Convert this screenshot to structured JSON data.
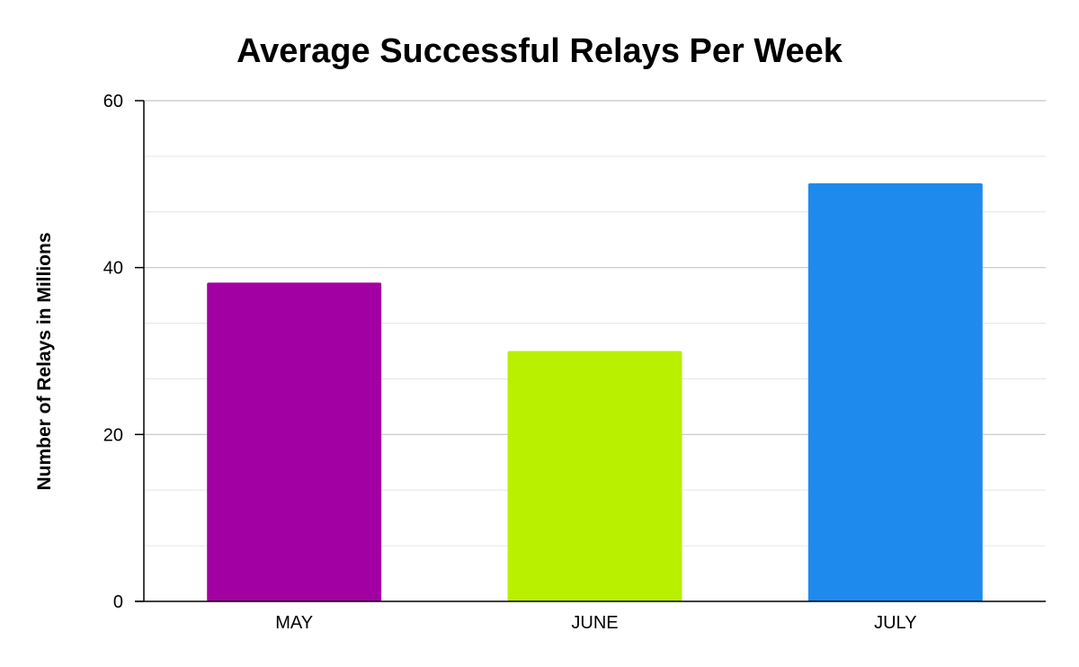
{
  "chart_data": {
    "type": "bar",
    "title": "Average Successful Relays Per Week",
    "xlabel": "",
    "ylabel": "Number of Relays in Millions",
    "categories": [
      "MAY",
      "JUNE",
      "JULY"
    ],
    "values": [
      38.2,
      30.0,
      50.1
    ],
    "colors": [
      "#a300a3",
      "#b8f000",
      "#1f8aed"
    ],
    "ylim": [
      0,
      60
    ],
    "yticks": [
      0,
      20,
      40,
      60
    ],
    "ytick_labels": [
      "0",
      "20",
      "40",
      "60"
    ],
    "minor_gridlines": true,
    "legend": "none"
  }
}
